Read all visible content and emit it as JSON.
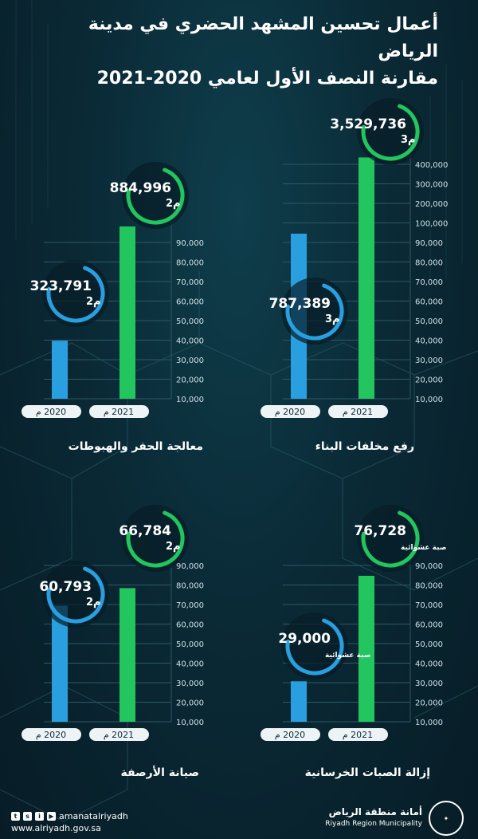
{
  "title": {
    "line1": "أعمال تحسين المشهد الحضري في مدينة الرياض",
    "line2": "مقارنة النصف الأول لعامي 2020-2021"
  },
  "colors": {
    "bar_2020": "#2a9fe0",
    "bar_2021": "#22c55e",
    "bg": "#0a2a36"
  },
  "chart_data": [
    {
      "type": "bar",
      "title": "رفع مخلفات البناء",
      "categories": [
        "2020 م",
        "2021 م"
      ],
      "values": [
        787389,
        3529736
      ],
      "value_labels": [
        "787,389",
        "3,529,736"
      ],
      "unit_labels": [
        "م3",
        "م3"
      ],
      "ylim": [
        0,
        400000
      ],
      "yticks": [
        "10,000",
        "20,000",
        "30,000",
        "40,000",
        "50,000",
        "60,000",
        "70,000",
        "80,000",
        "90,000",
        "100,000",
        "200,000",
        "300,000",
        "400,000"
      ],
      "bar_levels": [
        0.65,
        0.95
      ]
    },
    {
      "type": "bar",
      "title": "معالجة الحفر والهبوطات",
      "categories": [
        "2020 م",
        "2021 م"
      ],
      "values": [
        323791,
        884996
      ],
      "value_labels": [
        "323,791",
        "884,996"
      ],
      "unit_labels": [
        "م2",
        "م2"
      ],
      "ylim": [
        0,
        90000
      ],
      "yticks": [
        "10,000",
        "20,000",
        "30,000",
        "40,000",
        "50,000",
        "60,000",
        "70,000",
        "80,000",
        "90,000"
      ],
      "bar_levels": [
        0.33,
        0.98
      ]
    },
    {
      "type": "bar",
      "title": "إزالة الصبات الخرسانية",
      "categories": [
        "2020 م",
        "2021 م"
      ],
      "values": [
        29000,
        76728
      ],
      "value_labels": [
        "29,000",
        "76,728"
      ],
      "unit_labels": [
        "صبة عشوائية",
        "صبة عشوائية"
      ],
      "ylim": [
        0,
        90000
      ],
      "yticks": [
        "10,000",
        "20,000",
        "30,000",
        "40,000",
        "50,000",
        "60,000",
        "70,000",
        "80,000",
        "90,000"
      ],
      "bar_levels": [
        0.23,
        0.83
      ]
    },
    {
      "type": "bar",
      "title": "صيانة الأرصفة",
      "categories": [
        "2020 م",
        "2021 م"
      ],
      "values": [
        60793,
        66784
      ],
      "value_labels": [
        "60,793",
        "66,784"
      ],
      "unit_labels": [
        "م2",
        "م2"
      ],
      "ylim": [
        0,
        90000
      ],
      "yticks": [
        "10,000",
        "20,000",
        "30,000",
        "40,000",
        "50,000",
        "60,000",
        "70,000",
        "80,000",
        "90,000"
      ],
      "bar_levels": [
        0.66,
        0.76
      ]
    }
  ],
  "footer": {
    "handle": "amanatalriyadh",
    "website": "www.alriyadh.gov.sa",
    "org_ar": "أمانة منطقة الرياض",
    "org_en": "Riyadh Region Municipality",
    "social_icons": [
      "twitter-icon",
      "snapchat-icon",
      "instagram-icon",
      "youtube-icon"
    ]
  }
}
